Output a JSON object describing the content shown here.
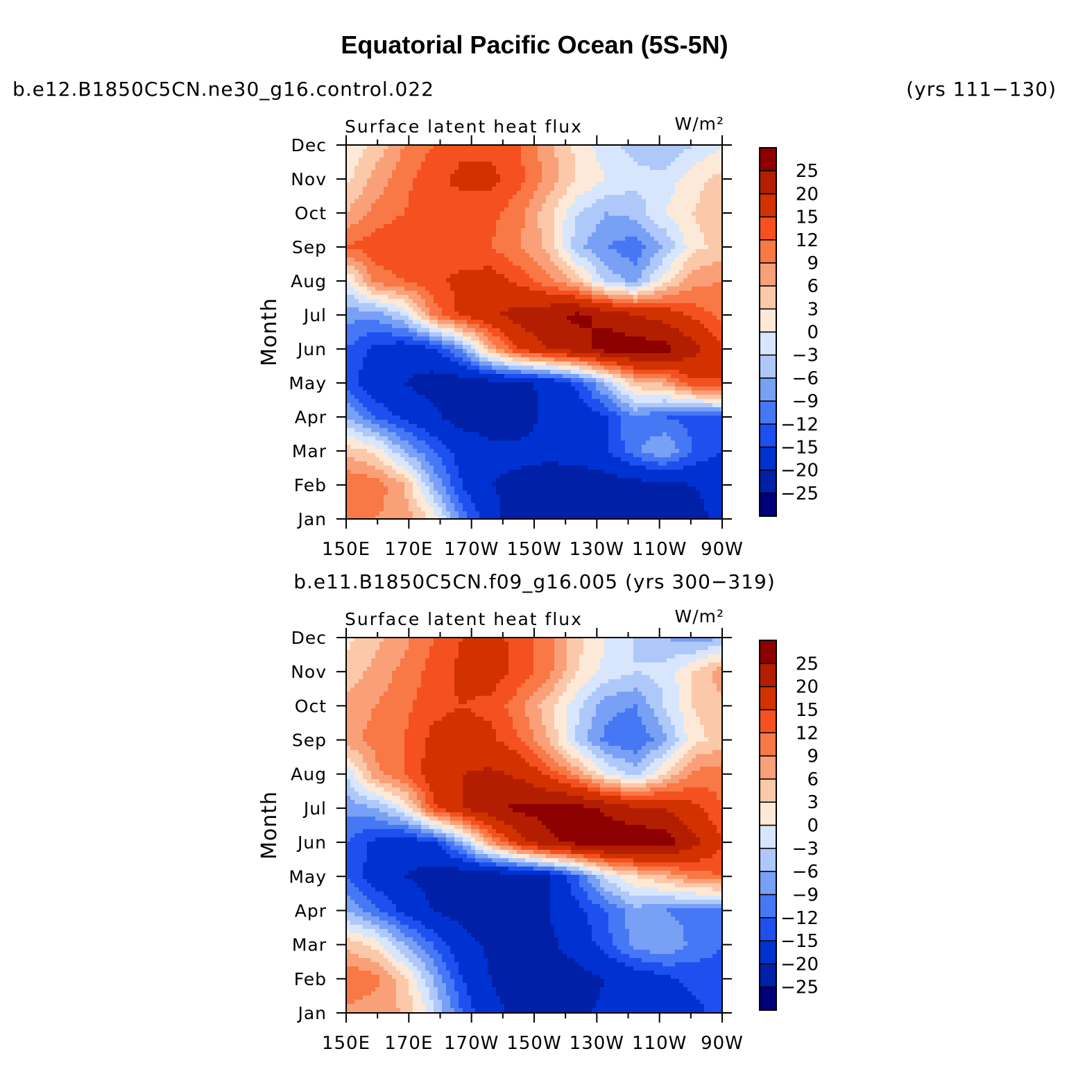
{
  "header": {
    "title": "Equatorial Pacific Ocean (5S-5N)",
    "case1": "b.e12.B1850C5CN.ne30_g16.control.022",
    "years1": "(yrs 111−130)",
    "case2": "b.e11.B1850C5CN.f09_g16.005 (yrs 300−319)"
  },
  "chart_data": [
    {
      "type": "heatmap",
      "title": "Surface latent heat flux",
      "units": "W/m²",
      "ylabel": "Month",
      "x": [
        "150E",
        "170E",
        "170W",
        "150W",
        "130W",
        "110W",
        "90W"
      ],
      "y": [
        "Jan",
        "Feb",
        "Mar",
        "Apr",
        "May",
        "Jun",
        "Jul",
        "Aug",
        "Sep",
        "Oct",
        "Nov",
        "Dec"
      ],
      "contour_levels": [
        -25,
        -20,
        -15,
        -12,
        -9,
        -6,
        -3,
        0,
        3,
        6,
        9,
        12,
        15,
        20,
        25
      ],
      "colors": [
        "#00007a",
        "#0020a8",
        "#0032d2",
        "#1e50f0",
        "#4678f5",
        "#78a0f5",
        "#afc8fa",
        "#d7e6fd",
        "#fde9d7",
        "#fcc8aa",
        "#faa078",
        "#f87846",
        "#f55020",
        "#d23200",
        "#b41e00",
        "#8c0000"
      ],
      "values": [
        [
          10,
          9,
          8,
          2,
          -10,
          -18,
          -23,
          -24,
          -24,
          -23,
          -20,
          -20,
          -21,
          -19
        ],
        [
          12,
          11,
          6,
          -6,
          -15,
          -20,
          -21,
          -22,
          -23,
          -23,
          -22,
          -21,
          -20,
          -19
        ],
        [
          5,
          2,
          -6,
          -12,
          -17,
          -19,
          -19,
          -19,
          -18,
          -15,
          -10,
          -6,
          -12,
          -15
        ],
        [
          -6,
          -12,
          -16,
          -19,
          -22,
          -22,
          -22,
          -19,
          -18,
          -15,
          -9,
          -12,
          -13,
          -12
        ],
        [
          -13,
          -18,
          -20,
          -22,
          -23,
          -22,
          -21,
          -19,
          -14,
          -5,
          5,
          7,
          14,
          15
        ],
        [
          -12,
          -16,
          -18,
          -16,
          -8,
          6,
          16,
          20,
          23,
          27,
          28,
          27,
          22,
          15
        ],
        [
          -8,
          -8,
          -3,
          10,
          16,
          19,
          22,
          24,
          26,
          24,
          20,
          18,
          14,
          11
        ],
        [
          -1,
          10,
          12,
          14,
          16,
          17,
          14,
          10,
          5,
          -4,
          -7,
          2,
          8,
          9
        ],
        [
          12,
          14,
          15,
          14,
          13,
          12,
          9,
          5,
          -5,
          -9,
          -11,
          -6,
          2,
          4
        ],
        [
          6,
          10,
          12,
          14,
          13,
          13,
          10,
          4,
          -3,
          -6,
          -5,
          0,
          3,
          5
        ],
        [
          2,
          7,
          11,
          14,
          16,
          16,
          13,
          8,
          3,
          0,
          -2,
          -2,
          2,
          4
        ],
        [
          0,
          4,
          9,
          12,
          14,
          14,
          12,
          7,
          2,
          -2,
          -4,
          -6,
          -3,
          0
        ]
      ]
    },
    {
      "type": "heatmap",
      "title": "Surface latent heat flux",
      "units": "W/m²",
      "ylabel": "Month",
      "x": [
        "150E",
        "170E",
        "170W",
        "150W",
        "130W",
        "110W",
        "90W"
      ],
      "y": [
        "Jan",
        "Feb",
        "Mar",
        "Apr",
        "May",
        "Jun",
        "Jul",
        "Aug",
        "Sep",
        "Oct",
        "Nov",
        "Dec"
      ],
      "contour_levels": [
        -25,
        -20,
        -15,
        -12,
        -9,
        -6,
        -3,
        0,
        3,
        6,
        9,
        12,
        15,
        20,
        25
      ],
      "colors": [
        "#00007a",
        "#0020a8",
        "#0032d2",
        "#1e50f0",
        "#4678f5",
        "#78a0f5",
        "#afc8fa",
        "#d7e6fd",
        "#fde9d7",
        "#fcc8aa",
        "#faa078",
        "#f87846",
        "#f55020",
        "#d23200",
        "#b41e00",
        "#8c0000"
      ],
      "values": [
        [
          8,
          7,
          6,
          -2,
          -12,
          -19,
          -21,
          -21,
          -21,
          -19,
          -18,
          -17,
          -16,
          -14
        ],
        [
          12,
          10,
          4,
          -6,
          -15,
          -20,
          -22,
          -22,
          -22,
          -20,
          -18,
          -16,
          -14,
          -13
        ],
        [
          5,
          2,
          -6,
          -12,
          -18,
          -21,
          -22,
          -21,
          -18,
          -13,
          -8,
          -6,
          -10,
          -12
        ],
        [
          -6,
          -11,
          -16,
          -20,
          -22,
          -23,
          -23,
          -20,
          -16,
          -12,
          -7,
          -9,
          -10,
          -11
        ],
        [
          -12,
          -17,
          -20,
          -22,
          -24,
          -24,
          -23,
          -20,
          -12,
          -2,
          3,
          6,
          10,
          12
        ],
        [
          -12,
          -16,
          -18,
          -16,
          -6,
          8,
          18,
          24,
          27,
          29,
          29,
          28,
          22,
          15
        ],
        [
          -8,
          -6,
          0,
          14,
          20,
          24,
          26,
          27,
          27,
          24,
          21,
          20,
          16,
          12
        ],
        [
          -3,
          8,
          12,
          17,
          20,
          21,
          19,
          14,
          8,
          0,
          -4,
          3,
          10,
          11
        ],
        [
          8,
          10,
          12,
          16,
          17,
          16,
          12,
          6,
          -4,
          -10,
          -12,
          -7,
          2,
          4
        ],
        [
          7,
          9,
          11,
          14,
          15,
          14,
          10,
          4,
          -2,
          -8,
          -9,
          -3,
          3,
          5
        ],
        [
          4,
          7,
          10,
          13,
          16,
          17,
          14,
          10,
          3,
          -1,
          -3,
          -2,
          3,
          8
        ],
        [
          2,
          5,
          8,
          12,
          15,
          16,
          14,
          10,
          4,
          0,
          -3,
          -6,
          -8,
          -6
        ]
      ]
    }
  ]
}
